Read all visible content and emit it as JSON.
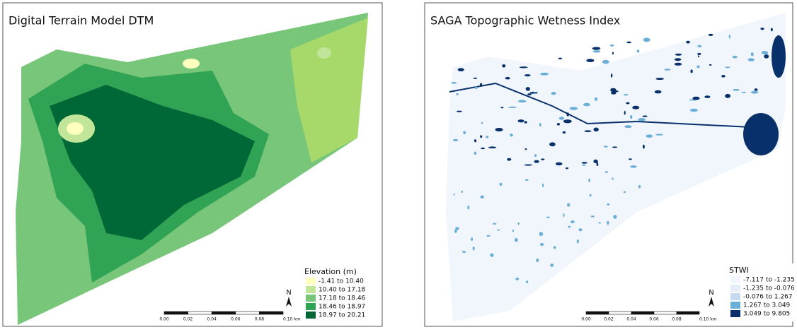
{
  "maps": [
    {
      "title": "Digital Terrain Model DTM",
      "legend_title": "Elevation (m)",
      "legend": [
        {
          "label": "-1.41 to 10.40",
          "color": "#ffffbf"
        },
        {
          "label": "10.40 to 17.18",
          "color": "#c2e699"
        },
        {
          "label": "17.18 to 18.46",
          "color": "#78c679"
        },
        {
          "label": "18.46 to 18.97",
          "color": "#31a354"
        },
        {
          "label": "18.97 to 20.21",
          "color": "#006837"
        }
      ],
      "north": "N",
      "scale_labels": [
        "0.00",
        "0.02",
        "0.04",
        "0.06",
        "0.08",
        "0.10 km"
      ]
    },
    {
      "title": "SAGA Topographic Wetness Index",
      "legend_title": "STWI",
      "legend": [
        {
          "label": "-7.117 to -1.235",
          "color": "#f1f6fc"
        },
        {
          "label": "-1.235 to -0.076",
          "color": "#e4eef8"
        },
        {
          "label": "-0.076 to 1.267",
          "color": "#c6dbef"
        },
        {
          "label": "1.267 to 3.049",
          "color": "#6baed6"
        },
        {
          "label": "3.049 to 9.805",
          "color": "#08306b"
        }
      ],
      "north": "N",
      "scale_labels": [
        "0.00",
        "0.02",
        "0.04",
        "0.06",
        "0.08",
        "0.10 km"
      ]
    }
  ]
}
